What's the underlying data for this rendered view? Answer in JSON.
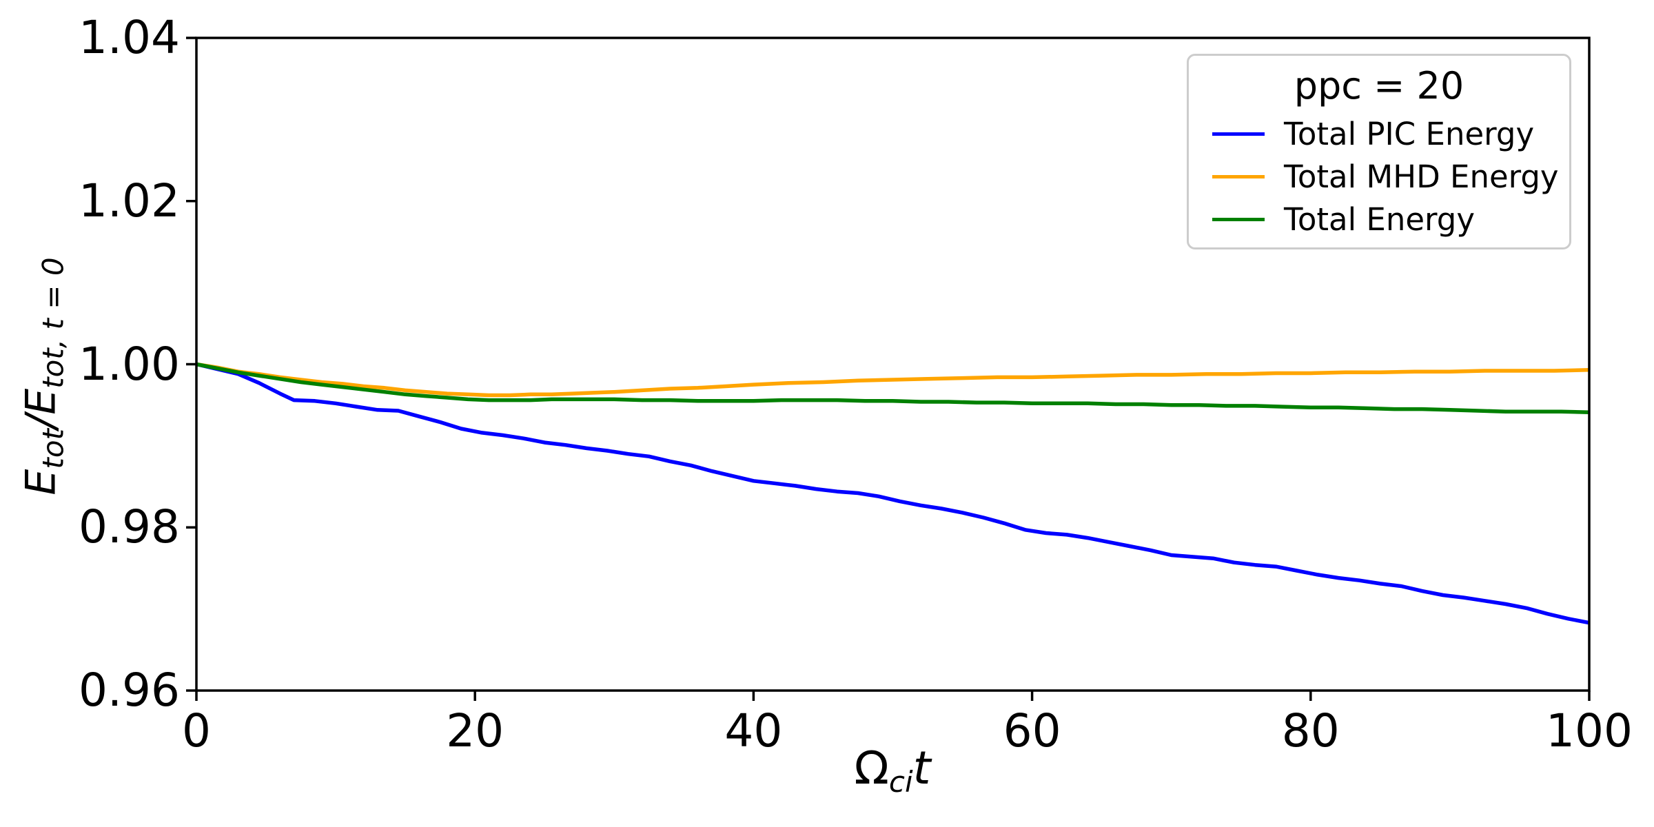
{
  "figure": {
    "background": "#ffffff",
    "axis_color": "#000000"
  },
  "axes": {
    "xlabel": {
      "base": "Ω",
      "sub": "ci",
      "var": "t"
    },
    "ylabel": {
      "num_base": "E",
      "num_sub": "tot",
      "slash": "/",
      "den_base": "E",
      "den_sub": "tot, t = 0"
    }
  },
  "legend": {
    "title": "ppc = 20"
  },
  "chart_data": {
    "type": "line",
    "title": "",
    "legend_title": "ppc = 20",
    "legend_position": "upper right",
    "grid": false,
    "xlabel": "Ω_ci t",
    "ylabel": "E_tot / E_tot, t = 0",
    "xlim": [
      0,
      100
    ],
    "ylim": [
      0.96,
      1.04
    ],
    "x_ticks": [
      0,
      20,
      40,
      60,
      80,
      100
    ],
    "x_tick_labels": [
      "0",
      "20",
      "40",
      "60",
      "80",
      "100"
    ],
    "y_ticks": [
      0.96,
      0.98,
      1.0,
      1.02,
      1.04
    ],
    "y_tick_labels": [
      "0.96",
      "0.98",
      "1.00",
      "1.02",
      "1.04"
    ],
    "series": [
      {
        "name": "Total PIC Energy",
        "color": "#0000ff",
        "points": [
          [
            0,
            1.0
          ],
          [
            1.5,
            0.9994
          ],
          [
            3,
            0.9988
          ],
          [
            4.5,
            0.9977
          ],
          [
            6,
            0.9964
          ],
          [
            7,
            0.9956
          ],
          [
            8.5,
            0.9955
          ],
          [
            10,
            0.9952
          ],
          [
            11.5,
            0.9948
          ],
          [
            13,
            0.9944
          ],
          [
            14.5,
            0.9943
          ],
          [
            16,
            0.9936
          ],
          [
            17.5,
            0.9929
          ],
          [
            19,
            0.9921
          ],
          [
            20.5,
            0.9916
          ],
          [
            22,
            0.9913
          ],
          [
            23.5,
            0.9909
          ],
          [
            25,
            0.9904
          ],
          [
            26.5,
            0.9901
          ],
          [
            28,
            0.9897
          ],
          [
            29.5,
            0.9894
          ],
          [
            31,
            0.989
          ],
          [
            32.5,
            0.9887
          ],
          [
            34,
            0.9881
          ],
          [
            35.5,
            0.9876
          ],
          [
            37,
            0.9869
          ],
          [
            38.5,
            0.9863
          ],
          [
            40,
            0.9857
          ],
          [
            41.5,
            0.9854
          ],
          [
            43,
            0.9851
          ],
          [
            44.5,
            0.9847
          ],
          [
            46,
            0.9844
          ],
          [
            47.5,
            0.9842
          ],
          [
            49,
            0.9838
          ],
          [
            50.5,
            0.9832
          ],
          [
            52,
            0.9827
          ],
          [
            53.5,
            0.9823
          ],
          [
            55,
            0.9818
          ],
          [
            56.5,
            0.9812
          ],
          [
            58,
            0.9805
          ],
          [
            59.5,
            0.9797
          ],
          [
            61,
            0.9793
          ],
          [
            62.5,
            0.9791
          ],
          [
            64,
            0.9787
          ],
          [
            65.5,
            0.9782
          ],
          [
            67,
            0.9777
          ],
          [
            68.5,
            0.9772
          ],
          [
            70,
            0.9766
          ],
          [
            71.5,
            0.9764
          ],
          [
            73,
            0.9762
          ],
          [
            74.5,
            0.9757
          ],
          [
            76,
            0.9754
          ],
          [
            77.5,
            0.9752
          ],
          [
            79,
            0.9747
          ],
          [
            80.5,
            0.9742
          ],
          [
            82,
            0.9738
          ],
          [
            83.5,
            0.9735
          ],
          [
            85,
            0.9731
          ],
          [
            86.5,
            0.9728
          ],
          [
            88,
            0.9722
          ],
          [
            89.5,
            0.9717
          ],
          [
            91,
            0.9714
          ],
          [
            92.5,
            0.971
          ],
          [
            94,
            0.9706
          ],
          [
            95.5,
            0.9701
          ],
          [
            97,
            0.9694
          ],
          [
            98.5,
            0.9688
          ],
          [
            100,
            0.9683
          ]
        ]
      },
      {
        "name": "Total MHD Energy",
        "color": "#ffa500",
        "points": [
          [
            0,
            1.0
          ],
          [
            1.5,
            0.9996
          ],
          [
            3,
            0.9991
          ],
          [
            4.5,
            0.9988
          ],
          [
            6,
            0.9984
          ],
          [
            7.5,
            0.9981
          ],
          [
            9,
            0.9978
          ],
          [
            10.5,
            0.9976
          ],
          [
            12,
            0.9973
          ],
          [
            13.5,
            0.9971
          ],
          [
            15,
            0.9968
          ],
          [
            16.5,
            0.9966
          ],
          [
            18,
            0.9964
          ],
          [
            19.5,
            0.9963
          ],
          [
            21,
            0.9962
          ],
          [
            22.5,
            0.9962
          ],
          [
            24,
            0.9963
          ],
          [
            25.5,
            0.9963
          ],
          [
            27,
            0.9964
          ],
          [
            28.5,
            0.9965
          ],
          [
            30,
            0.9966
          ],
          [
            32,
            0.9968
          ],
          [
            34,
            0.997
          ],
          [
            36,
            0.9971
          ],
          [
            38,
            0.9973
          ],
          [
            40,
            0.9975
          ],
          [
            42.5,
            0.9977
          ],
          [
            45,
            0.9978
          ],
          [
            47.5,
            0.998
          ],
          [
            50,
            0.9981
          ],
          [
            52.5,
            0.9982
          ],
          [
            55,
            0.9983
          ],
          [
            57.5,
            0.9984
          ],
          [
            60,
            0.9984
          ],
          [
            62.5,
            0.9985
          ],
          [
            65,
            0.9986
          ],
          [
            67.5,
            0.9987
          ],
          [
            70,
            0.9987
          ],
          [
            72.5,
            0.9988
          ],
          [
            75,
            0.9988
          ],
          [
            77.5,
            0.9989
          ],
          [
            80,
            0.9989
          ],
          [
            82.5,
            0.999
          ],
          [
            85,
            0.999
          ],
          [
            87.5,
            0.9991
          ],
          [
            90,
            0.9991
          ],
          [
            92.5,
            0.9992
          ],
          [
            95,
            0.9992
          ],
          [
            97.5,
            0.9992
          ],
          [
            100,
            0.9993
          ]
        ]
      },
      {
        "name": "Total Energy",
        "color": "#008000",
        "points": [
          [
            0,
            1.0
          ],
          [
            1.5,
            0.9995
          ],
          [
            3,
            0.999
          ],
          [
            4.5,
            0.9986
          ],
          [
            6,
            0.9982
          ],
          [
            7.5,
            0.9978
          ],
          [
            9,
            0.9975
          ],
          [
            10.5,
            0.9972
          ],
          [
            12,
            0.9969
          ],
          [
            13.5,
            0.9966
          ],
          [
            15,
            0.9963
          ],
          [
            16.5,
            0.9961
          ],
          [
            18,
            0.9959
          ],
          [
            19.5,
            0.9957
          ],
          [
            21,
            0.9956
          ],
          [
            22.5,
            0.9956
          ],
          [
            24,
            0.9956
          ],
          [
            25.5,
            0.9957
          ],
          [
            27,
            0.9957
          ],
          [
            28.5,
            0.9957
          ],
          [
            30,
            0.9957
          ],
          [
            32,
            0.9956
          ],
          [
            34,
            0.9956
          ],
          [
            36,
            0.9955
          ],
          [
            38,
            0.9955
          ],
          [
            40,
            0.9955
          ],
          [
            42,
            0.9956
          ],
          [
            44,
            0.9956
          ],
          [
            46,
            0.9956
          ],
          [
            48,
            0.9955
          ],
          [
            50,
            0.9955
          ],
          [
            52,
            0.9954
          ],
          [
            54,
            0.9954
          ],
          [
            56,
            0.9953
          ],
          [
            58,
            0.9953
          ],
          [
            60,
            0.9952
          ],
          [
            62,
            0.9952
          ],
          [
            64,
            0.9952
          ],
          [
            66,
            0.9951
          ],
          [
            68,
            0.9951
          ],
          [
            70,
            0.995
          ],
          [
            72,
            0.995
          ],
          [
            74,
            0.9949
          ],
          [
            76,
            0.9949
          ],
          [
            78,
            0.9948
          ],
          [
            80,
            0.9947
          ],
          [
            82,
            0.9947
          ],
          [
            84,
            0.9946
          ],
          [
            86,
            0.9945
          ],
          [
            88,
            0.9945
          ],
          [
            90,
            0.9944
          ],
          [
            92,
            0.9943
          ],
          [
            94,
            0.9942
          ],
          [
            96,
            0.9942
          ],
          [
            98,
            0.9942
          ],
          [
            100,
            0.9941
          ]
        ]
      }
    ]
  }
}
